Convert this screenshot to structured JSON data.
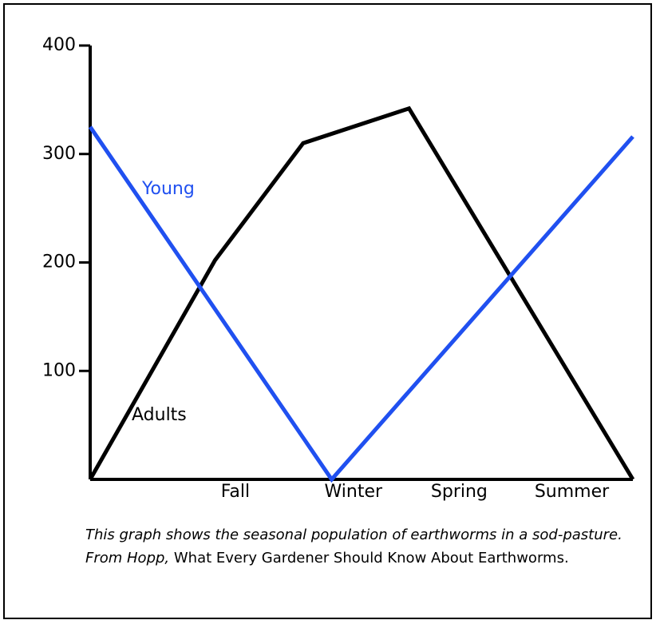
{
  "chart_data": {
    "type": "line",
    "series": [
      {
        "name": "Adults",
        "color": "#000000",
        "x": [
          0,
          0.92,
          1.57,
          2.35,
          4.0
        ],
        "values": [
          0,
          202,
          310,
          342,
          0
        ]
      },
      {
        "name": "Young",
        "color": "#2050f0",
        "x": [
          0,
          1.78,
          4.0
        ],
        "values": [
          325,
          0,
          316
        ]
      }
    ],
    "xlim": [
      0,
      4
    ],
    "xticks": [
      {
        "value": 1.07,
        "label": "Fall"
      },
      {
        "value": 1.94,
        "label": "Winter"
      },
      {
        "value": 2.72,
        "label": "Spring"
      },
      {
        "value": 3.55,
        "label": "Summer"
      }
    ],
    "ylim": [
      0,
      400
    ],
    "yticks": [
      100,
      200,
      300,
      400
    ],
    "caption": [
      "This graph shows the seasonal population of earthworms in a sod-pasture. From Hopp,",
      " What Every Gardener Should Know About Earthworms."
    ]
  }
}
